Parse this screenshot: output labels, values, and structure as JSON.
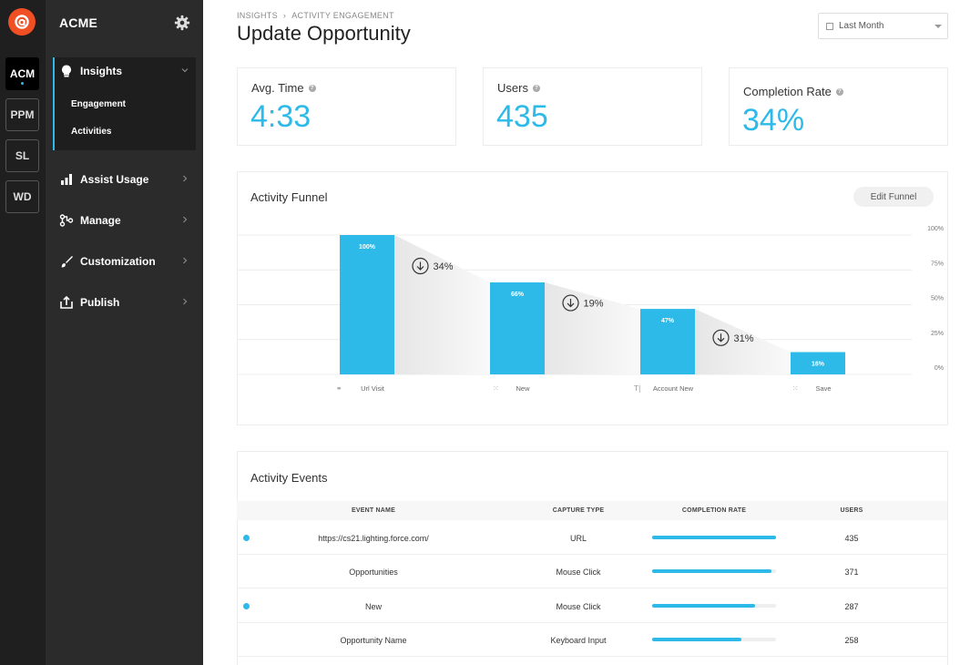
{
  "apps": [
    {
      "label": "ACM",
      "active": true
    },
    {
      "label": "PPM",
      "active": false
    },
    {
      "label": "SL",
      "active": false
    },
    {
      "label": "WD",
      "active": false
    }
  ],
  "sidebar": {
    "title": "ACME",
    "items": [
      {
        "label": "Insights",
        "icon": "lightbulb-icon",
        "expanded": true,
        "subitems": [
          "Engagement",
          "Activities"
        ]
      },
      {
        "label": "Assist Usage",
        "icon": "bar-chart-icon"
      },
      {
        "label": "Manage",
        "icon": "manage-icon"
      },
      {
        "label": "Customization",
        "icon": "brush-icon"
      },
      {
        "label": "Publish",
        "icon": "publish-icon"
      }
    ]
  },
  "header": {
    "breadcrumb": [
      "INSIGHTS",
      "ACTIVITY ENGAGEMENT"
    ],
    "title": "Update Opportunity",
    "date_range": "Last Month"
  },
  "stats": [
    {
      "label": "Avg. Time",
      "value": "4:33"
    },
    {
      "label": "Users",
      "value": "435"
    },
    {
      "label": "Completion Rate",
      "value": "34%"
    }
  ],
  "funnel": {
    "title": "Activity Funnel",
    "edit_label": "Edit Funnel",
    "y_ticks": [
      "100%",
      "75%",
      "50%",
      "25%",
      "0%"
    ],
    "steps": [
      {
        "name": "Url Visit",
        "icon": "link-icon",
        "value": 100,
        "label": "100%"
      },
      {
        "name": "New",
        "icon": "click-icon",
        "value": 66,
        "label": "66%"
      },
      {
        "name": "Account New",
        "icon": "text-input-icon",
        "value": 47,
        "label": "47%"
      },
      {
        "name": "Save",
        "icon": "click-icon",
        "value": 16,
        "label": "16%"
      }
    ],
    "drops": [
      "34%",
      "19%",
      "31%"
    ],
    "accent": "#2dbae8"
  },
  "events": {
    "title": "Activity Events",
    "columns": [
      "EVENT NAME",
      "CAPTURE TYPE",
      "COMPLETION RATE",
      "USERS"
    ],
    "rows": [
      {
        "name": "https://cs21.lighting.force.com/",
        "type": "URL",
        "rate": 100,
        "users": "435",
        "dot": true
      },
      {
        "name": "Opportunities",
        "type": "Mouse Click",
        "rate": 96,
        "users": "371",
        "dot": false
      },
      {
        "name": "New",
        "type": "Mouse Click",
        "rate": 83,
        "users": "287",
        "dot": true
      },
      {
        "name": "Opportunity Name",
        "type": "Keyboard Input",
        "rate": 72,
        "users": "258",
        "dot": false
      }
    ]
  }
}
